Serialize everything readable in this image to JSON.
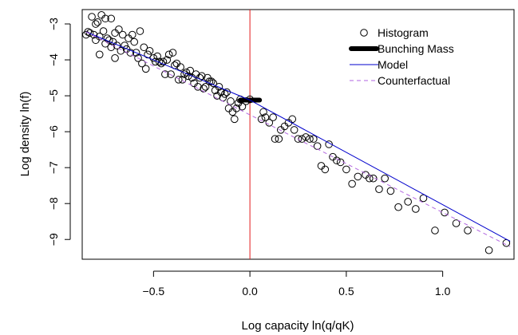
{
  "chart_data": {
    "type": "scatter",
    "title": "",
    "xlabel": "Log capacity ln(q/qK)",
    "ylabel": "Log density ln(f)",
    "xlim": [
      -0.87,
      1.37
    ],
    "ylim": [
      -9.55,
      -2.6
    ],
    "xticks": [
      -0.5,
      0.0,
      0.5,
      1.0
    ],
    "xtick_labels": [
      "−0.5",
      "0.0",
      "0.5",
      "1.0"
    ],
    "yticks": [
      -9,
      -8,
      -7,
      -6,
      -5,
      -4,
      -3
    ],
    "ytick_labels": [
      "−9",
      "−8",
      "−7",
      "−6",
      "−5",
      "−4",
      "−3"
    ],
    "grid": false,
    "legend_position": "top-right",
    "kink": {
      "x": 0.0,
      "color": "#e31a1c"
    },
    "series": [
      {
        "name": "Histogram",
        "kind": "points",
        "color": "#000000",
        "points": [
          [
            -0.85,
            -3.3
          ],
          [
            -0.84,
            -3.22
          ],
          [
            -0.83,
            -3.25
          ],
          [
            -0.82,
            -2.8
          ],
          [
            -0.81,
            -3.3
          ],
          [
            -0.8,
            -3.45
          ],
          [
            -0.8,
            -3.0
          ],
          [
            -0.79,
            -2.95
          ],
          [
            -0.78,
            -3.35
          ],
          [
            -0.78,
            -3.85
          ],
          [
            -0.77,
            -2.75
          ],
          [
            -0.76,
            -3.2
          ],
          [
            -0.75,
            -3.55
          ],
          [
            -0.75,
            -2.85
          ],
          [
            -0.74,
            -3.4
          ],
          [
            -0.73,
            -3.45
          ],
          [
            -0.72,
            -2.85
          ],
          [
            -0.72,
            -3.65
          ],
          [
            -0.71,
            -3.5
          ],
          [
            -0.7,
            -3.25
          ],
          [
            -0.7,
            -3.95
          ],
          [
            -0.69,
            -3.6
          ],
          [
            -0.68,
            -3.15
          ],
          [
            -0.67,
            -3.75
          ],
          [
            -0.66,
            -3.3
          ],
          [
            -0.65,
            -3.6
          ],
          [
            -0.64,
            -3.7
          ],
          [
            -0.63,
            -3.4
          ],
          [
            -0.62,
            -3.8
          ],
          [
            -0.61,
            -3.3
          ],
          [
            -0.6,
            -3.5
          ],
          [
            -0.59,
            -3.8
          ],
          [
            -0.58,
            -3.95
          ],
          [
            -0.57,
            -3.2
          ],
          [
            -0.56,
            -4.1
          ],
          [
            -0.55,
            -3.65
          ],
          [
            -0.54,
            -4.25
          ],
          [
            -0.53,
            -3.85
          ],
          [
            -0.52,
            -3.75
          ],
          [
            -0.5,
            -3.95
          ],
          [
            -0.49,
            -4.05
          ],
          [
            -0.48,
            -3.9
          ],
          [
            -0.47,
            -4.05
          ],
          [
            -0.46,
            -4.1
          ],
          [
            -0.45,
            -4.05
          ],
          [
            -0.44,
            -4.4
          ],
          [
            -0.43,
            -4.0
          ],
          [
            -0.42,
            -3.85
          ],
          [
            -0.41,
            -4.4
          ],
          [
            -0.4,
            -3.8
          ],
          [
            -0.39,
            -4.15
          ],
          [
            -0.38,
            -4.1
          ],
          [
            -0.37,
            -4.55
          ],
          [
            -0.36,
            -4.2
          ],
          [
            -0.35,
            -4.55
          ],
          [
            -0.34,
            -4.4
          ],
          [
            -0.33,
            -4.35
          ],
          [
            -0.32,
            -4.45
          ],
          [
            -0.31,
            -4.3
          ],
          [
            -0.3,
            -4.5
          ],
          [
            -0.29,
            -4.65
          ],
          [
            -0.28,
            -4.4
          ],
          [
            -0.27,
            -4.75
          ],
          [
            -0.26,
            -4.5
          ],
          [
            -0.25,
            -4.45
          ],
          [
            -0.24,
            -4.8
          ],
          [
            -0.23,
            -4.75
          ],
          [
            -0.22,
            -4.5
          ],
          [
            -0.21,
            -4.6
          ],
          [
            -0.2,
            -4.6
          ],
          [
            -0.19,
            -4.65
          ],
          [
            -0.18,
            -4.85
          ],
          [
            -0.17,
            -5.0
          ],
          [
            -0.16,
            -4.75
          ],
          [
            -0.15,
            -4.9
          ],
          [
            -0.14,
            -5.05
          ],
          [
            -0.13,
            -4.95
          ],
          [
            -0.12,
            -4.9
          ],
          [
            -0.11,
            -5.35
          ],
          [
            -0.1,
            -5.15
          ],
          [
            -0.09,
            -5.45
          ],
          [
            -0.08,
            -5.65
          ],
          [
            -0.07,
            -5.35
          ],
          [
            -0.06,
            -5.2
          ],
          [
            -0.05,
            -5.1
          ],
          [
            -0.04,
            -5.3
          ],
          [
            -0.02,
            -5.15
          ],
          [
            0.0,
            -5.1
          ],
          [
            0.06,
            -5.65
          ],
          [
            0.07,
            -5.45
          ],
          [
            0.08,
            -5.6
          ],
          [
            0.1,
            -5.75
          ],
          [
            0.12,
            -5.6
          ],
          [
            0.13,
            -6.2
          ],
          [
            0.15,
            -6.2
          ],
          [
            0.16,
            -5.95
          ],
          [
            0.18,
            -5.85
          ],
          [
            0.2,
            -5.75
          ],
          [
            0.22,
            -5.65
          ],
          [
            0.23,
            -5.95
          ],
          [
            0.25,
            -6.2
          ],
          [
            0.27,
            -6.2
          ],
          [
            0.29,
            -6.15
          ],
          [
            0.31,
            -6.2
          ],
          [
            0.33,
            -6.2
          ],
          [
            0.35,
            -6.4
          ],
          [
            0.37,
            -6.95
          ],
          [
            0.39,
            -7.05
          ],
          [
            0.41,
            -6.35
          ],
          [
            0.43,
            -6.7
          ],
          [
            0.45,
            -6.8
          ],
          [
            0.47,
            -6.85
          ],
          [
            0.5,
            -7.05
          ],
          [
            0.53,
            -7.45
          ],
          [
            0.56,
            -7.25
          ],
          [
            0.6,
            -7.2
          ],
          [
            0.62,
            -7.3
          ],
          [
            0.64,
            -7.3
          ],
          [
            0.67,
            -7.6
          ],
          [
            0.7,
            -7.3
          ],
          [
            0.73,
            -7.65
          ],
          [
            0.77,
            -8.1
          ],
          [
            0.82,
            -7.95
          ],
          [
            0.86,
            -8.15
          ],
          [
            0.9,
            -7.85
          ],
          [
            0.96,
            -8.75
          ],
          [
            1.01,
            -8.25
          ],
          [
            1.07,
            -8.55
          ],
          [
            1.13,
            -8.75
          ],
          [
            1.24,
            -9.3
          ],
          [
            1.33,
            -9.1
          ]
        ]
      },
      {
        "name": "Bunching Mass",
        "kind": "thick-segment",
        "color": "#000000",
        "x": [
          -0.05,
          0.05
        ],
        "y": [
          -5.12,
          -5.12
        ]
      },
      {
        "name": "Model",
        "kind": "line",
        "color": "#0000cc",
        "x": [
          -0.85,
          0.0,
          1.35
        ],
        "y": [
          -3.22,
          -5.12,
          -9.05
        ]
      },
      {
        "name": "Counterfactual",
        "kind": "dashed-line",
        "color": "#b266e0",
        "x": [
          -0.85,
          1.35
        ],
        "y": [
          -3.22,
          -9.2
        ]
      }
    ]
  }
}
